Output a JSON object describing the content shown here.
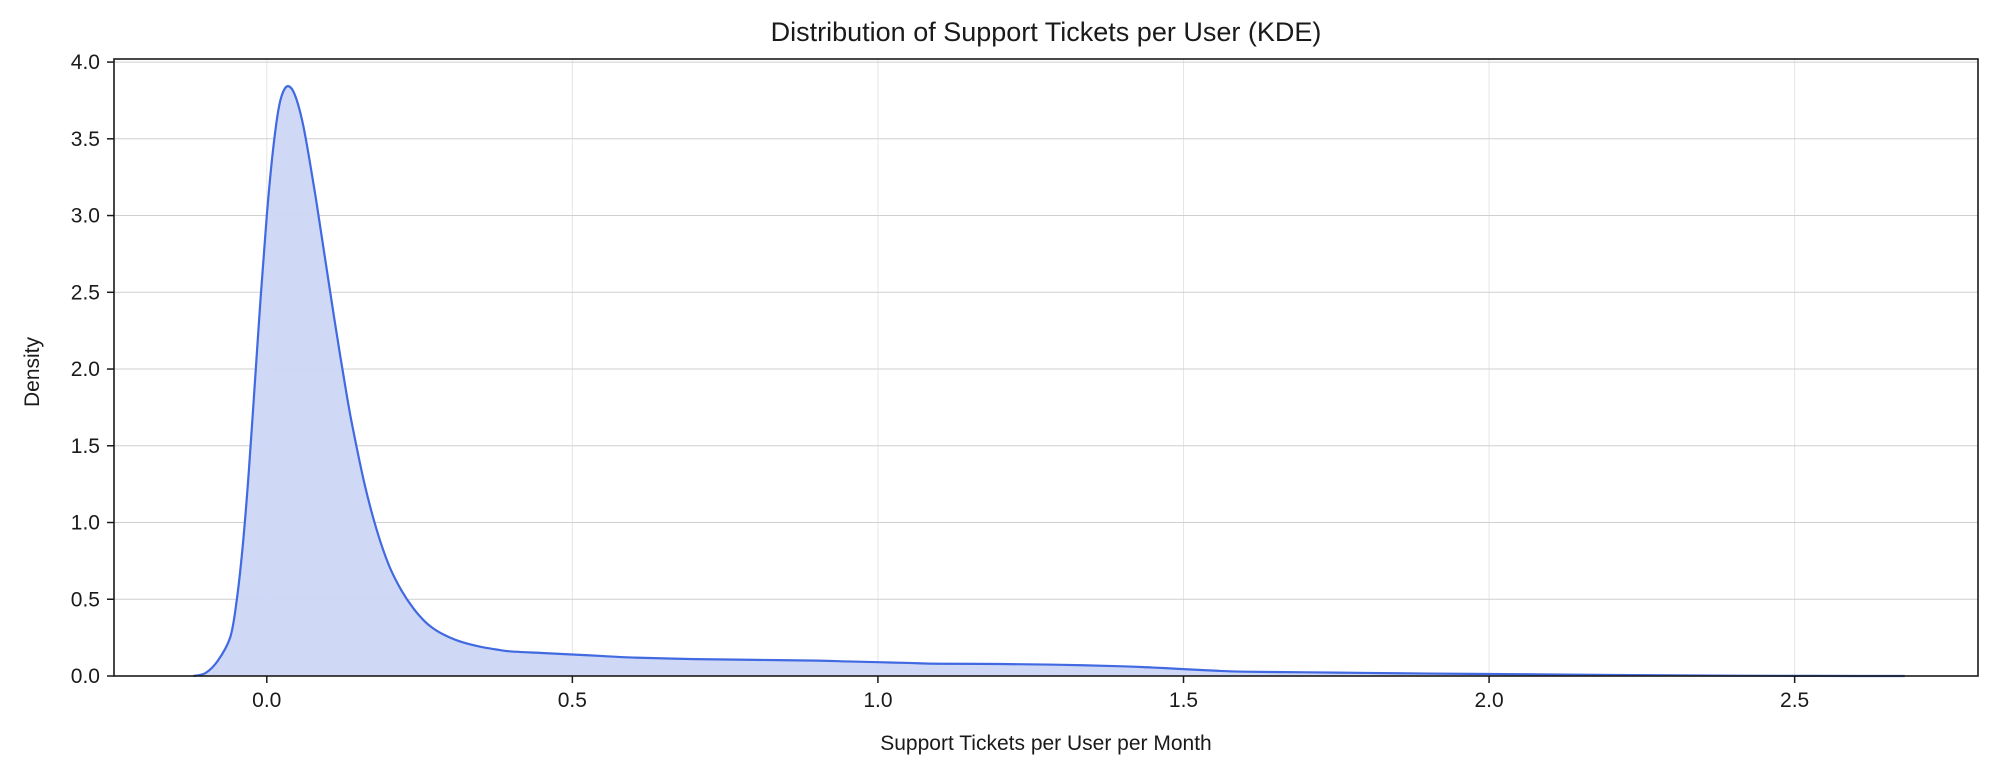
{
  "chart_data": {
    "type": "area",
    "title": "Distribution of Support Tickets per User (KDE)",
    "xlabel": "Support Tickets per User per Month",
    "ylabel": "Density",
    "xlim": [
      -0.25,
      2.8
    ],
    "ylim": [
      0,
      4.02
    ],
    "xticks": [
      0.0,
      0.5,
      1.0,
      1.5,
      2.0,
      2.5
    ],
    "xtick_labels": [
      "0.0",
      "0.5",
      "1.0",
      "1.5",
      "2.0",
      "2.5"
    ],
    "yticks": [
      0.0,
      0.5,
      1.0,
      1.5,
      2.0,
      2.5,
      3.0,
      3.5,
      4.0
    ],
    "ytick_labels": [
      "0.0",
      "0.5",
      "1.0",
      "1.5",
      "2.0",
      "2.5",
      "3.0",
      "3.5",
      "4.0"
    ],
    "grid": true,
    "legend": "none",
    "colors": {
      "line": "#4169e1",
      "fill": "#ccd7f5"
    },
    "series": [
      {
        "x": [
          -0.12,
          -0.1,
          -0.08,
          -0.06,
          -0.05,
          -0.04,
          -0.03,
          -0.02,
          -0.01,
          0.0,
          0.01,
          0.02,
          0.03,
          0.04,
          0.05,
          0.06,
          0.07,
          0.08,
          0.09,
          0.1,
          0.11,
          0.12,
          0.13,
          0.14,
          0.16,
          0.18,
          0.2,
          0.22,
          0.24,
          0.26,
          0.28,
          0.3,
          0.32,
          0.35,
          0.38,
          0.4,
          0.45,
          0.5,
          0.55,
          0.6,
          0.7,
          0.8,
          0.9,
          0.95,
          1.0,
          1.05,
          1.1,
          1.2,
          1.3,
          1.4,
          1.45,
          1.5,
          1.55,
          1.6,
          1.7,
          1.8,
          1.9,
          2.0,
          2.1,
          2.2,
          2.3,
          2.4,
          2.5,
          2.6,
          2.68
        ],
        "y": [
          0.0,
          0.02,
          0.1,
          0.25,
          0.47,
          0.82,
          1.3,
          1.88,
          2.47,
          3.0,
          3.42,
          3.71,
          3.83,
          3.83,
          3.74,
          3.58,
          3.36,
          3.12,
          2.86,
          2.6,
          2.34,
          2.09,
          1.85,
          1.63,
          1.25,
          0.95,
          0.72,
          0.56,
          0.44,
          0.35,
          0.29,
          0.25,
          0.22,
          0.19,
          0.17,
          0.16,
          0.15,
          0.14,
          0.13,
          0.12,
          0.11,
          0.105,
          0.1,
          0.095,
          0.09,
          0.085,
          0.08,
          0.078,
          0.073,
          0.063,
          0.055,
          0.045,
          0.035,
          0.028,
          0.024,
          0.02,
          0.016,
          0.013,
          0.01,
          0.007,
          0.004,
          0.002,
          0.001,
          0.0,
          0.0
        ]
      }
    ]
  }
}
